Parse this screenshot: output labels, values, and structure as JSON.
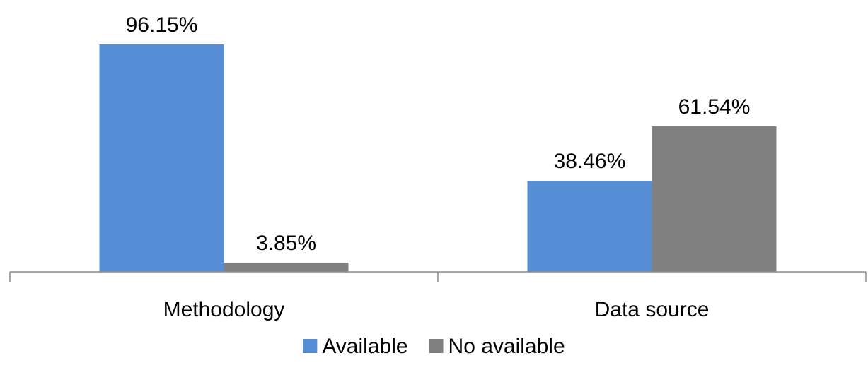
{
  "chart_data": {
    "type": "bar",
    "categories": [
      "Methodology",
      "Data source"
    ],
    "series": [
      {
        "name": "Available",
        "color": "#558ED5",
        "values": [
          96.15,
          38.46
        ],
        "labels": [
          "96.15%",
          "38.46%"
        ]
      },
      {
        "name": "No available",
        "color": "#808080",
        "values": [
          3.85,
          61.54
        ],
        "labels": [
          "3.85%",
          "61.54%"
        ]
      }
    ],
    "ylim": [
      0,
      100
    ],
    "grid": false,
    "legend": "bottom-center",
    "axis_color": "#8C8C8C"
  }
}
